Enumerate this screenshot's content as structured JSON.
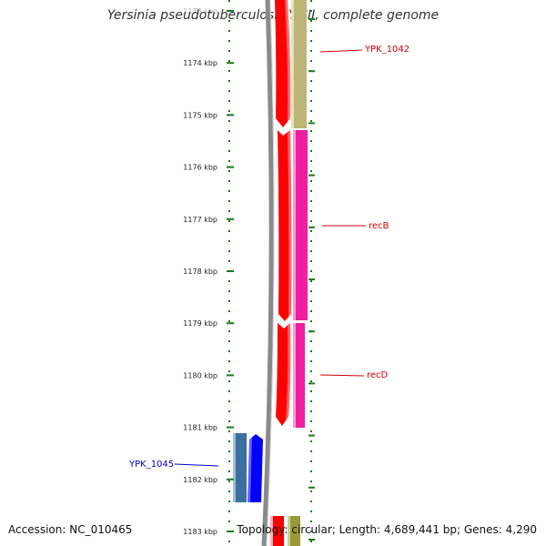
{
  "header": {
    "title": "Yersinia pseudotuberculosis YPIII, complete genome"
  },
  "footer": {
    "accession": "Accession: NC_010465",
    "stats": "Topology: circular; Length: 4,689,441 bp; Genes: 4,290"
  },
  "axis": {
    "unit": "kbp",
    "ticks": [
      {
        "label": "1173 kbp"
      },
      {
        "label": "1174 kbp"
      },
      {
        "label": "1175 kbp"
      },
      {
        "label": "1176 kbp"
      },
      {
        "label": "1177 kbp"
      },
      {
        "label": "1178 kbp"
      },
      {
        "label": "1179 kbp"
      },
      {
        "label": "1180 kbp"
      },
      {
        "label": "1181 kbp"
      },
      {
        "label": "1182 kbp"
      },
      {
        "label": "1183 kbp"
      }
    ]
  },
  "genes": [
    {
      "name": "YPK_1042",
      "color": "#cc0000"
    },
    {
      "name": "recB",
      "color": "#cc0000"
    },
    {
      "name": "recD",
      "color": "#cc0000"
    },
    {
      "name": "YPK_1045",
      "color": "#0000cc"
    }
  ],
  "colors": {
    "tick_green": "#1a7a1a",
    "backbone": "#8a8a8a",
    "forward_cds": "#ff0000",
    "feature_olive": "#bdb478",
    "feature_magenta": "#f01ea0",
    "reverse_cds": "#0000ff",
    "feature_steelblue": "#3a6fa0",
    "label_red": "#cc0000",
    "label_blue": "#0000cc"
  }
}
